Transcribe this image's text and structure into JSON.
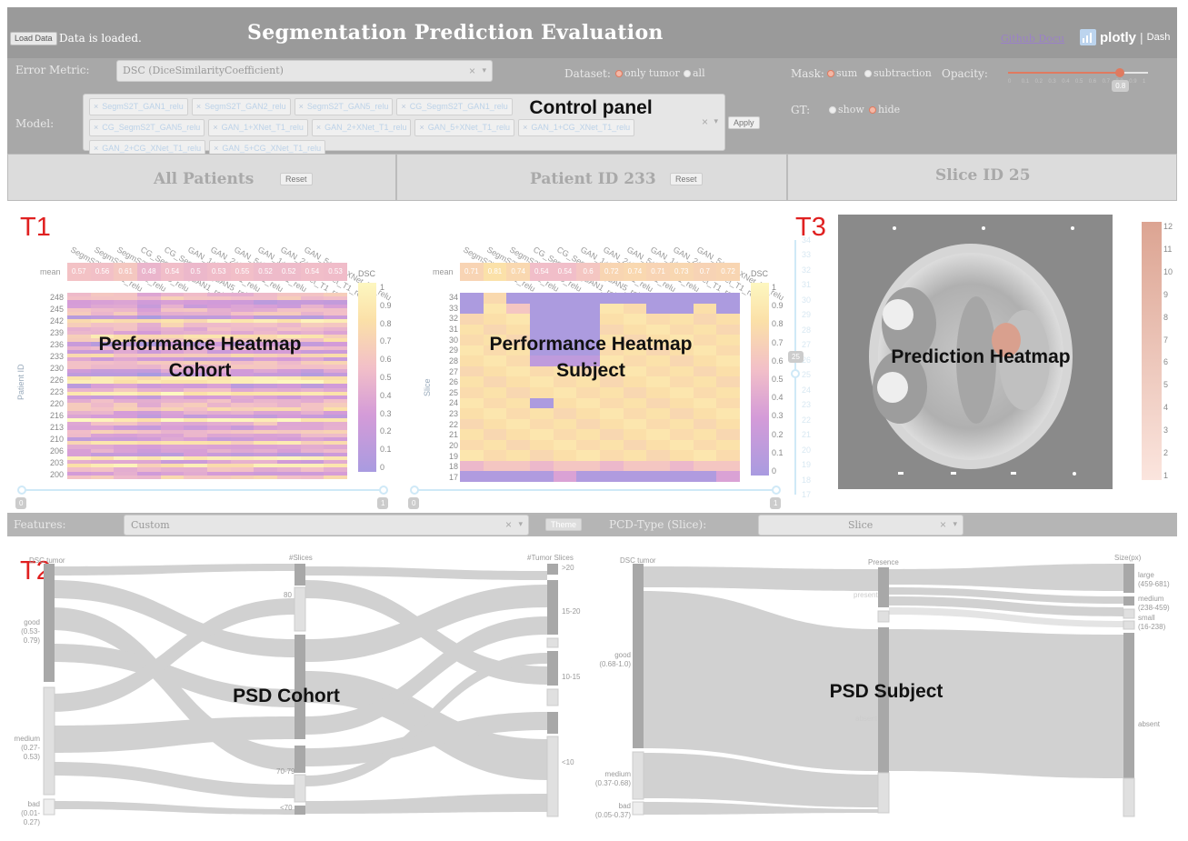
{
  "header": {
    "load_button": "Load Data",
    "load_status": "Data is loaded.",
    "title": "Segmentation Prediction Evaluation",
    "github_docu": "Github Docu",
    "plotly_word": "plotly",
    "plotly_sep": "|",
    "plotly_dash": "Dash"
  },
  "controls": {
    "error_metric_label": "Error Metric:",
    "error_metric_value": "DSC (DiceSimilarityCoefficient)",
    "dataset_label": "Dataset:",
    "dataset_options": [
      "only tumor",
      "all"
    ],
    "model_label": "Model:",
    "models": [
      "SegmS2T_GAN1_relu",
      "SegmS2T_GAN2_relu",
      "SegmS2T_GAN5_relu",
      "CG_SegmS2T_GAN1_relu",
      "CG_SegmS2T_GAN5_relu",
      "GAN_1+XNet_T1_relu",
      "GAN_2+XNet_T1_relu",
      "GAN_5+XNet_T1_relu",
      "GAN_1+CG_XNet_T1_relu",
      "GAN_2+CG_XNet_T1_relu",
      "GAN_5+CG_XNet_T1_relu"
    ],
    "apply_button": "Apply",
    "clear_glyph": "×",
    "caret_glyph": "▾",
    "overlay": "Control panel",
    "mask_label": "Mask:",
    "mask_options": [
      "sum",
      "subtraction"
    ],
    "opacity_label": "Opacity:",
    "opacity_ticks": [
      "0",
      "0.1",
      "0.2",
      "0.3",
      "0.4",
      "0.5",
      "0.6",
      "0.7",
      "0.8",
      "0.9",
      "1"
    ],
    "opacity_value": "0.8",
    "opacity_fraction": 0.8,
    "gt_label": "GT:",
    "gt_options": [
      "show",
      "hide"
    ]
  },
  "sections": {
    "all_patients": "All Patients",
    "patient": "Patient ID 233",
    "slice": "Slice ID 25",
    "reset": "Reset"
  },
  "tags": {
    "t1": "T1",
    "t2": "T2",
    "t3": "T3"
  },
  "cohort_heatmap": {
    "overlay_line1": "Performance Heatmap",
    "overlay_line2": "Cohort",
    "mean_label": "mean",
    "means": [
      "0.57",
      "0.56",
      "0.61",
      "0.48",
      "0.54",
      "0.5",
      "0.53",
      "0.55",
      "0.52",
      "0.52",
      "0.54",
      "0.53"
    ],
    "columns": [
      "SegmS2T_GAN1_relu",
      "SegmS2T_GAN2_relu",
      "SegmS2T_GAN5_relu",
      "CG_SegmS2T_GAN1_relu",
      "CG_SegmS2T_GAN5_relu",
      "GAN_1+XNet_T1_relu",
      "GAN_2+XNet_T1_relu",
      "GAN_5+XNet_T1_relu",
      "GAN_1+CG_XNet_T1_relu",
      "GAN_2+CG_XNet_T1_relu",
      "GAN_5+CG_XNet_T1_relu",
      ""
    ],
    "yaxis_label": "Patient ID",
    "y_ticks": [
      "248",
      "245",
      "242",
      "239",
      "236",
      "233",
      "230",
      "226",
      "223",
      "220",
      "216",
      "213",
      "210",
      "206",
      "203",
      "200"
    ],
    "colorbar_title": "DSC",
    "colorbar_ticks": [
      "1",
      "0.9",
      "0.8",
      "0.7",
      "0.6",
      "0.5",
      "0.4",
      "0.3",
      "0.2",
      "0.1",
      "0"
    ],
    "slider_min": "0",
    "slider_max": "1"
  },
  "subject_heatmap": {
    "overlay_line1": "Performance Heatmap",
    "overlay_line2": "Subject",
    "mean_label": "mean",
    "means": [
      "0.71",
      "0.81",
      "0.74",
      "0.54",
      "0.54",
      "0.6",
      "0.72",
      "0.74",
      "0.71",
      "0.73",
      "0.7",
      "0.72"
    ],
    "yaxis_label": "Slice",
    "y_ticks": [
      "34",
      "33",
      "32",
      "31",
      "30",
      "29",
      "28",
      "27",
      "26",
      "25",
      "24",
      "23",
      "22",
      "21",
      "20",
      "19",
      "18",
      "17"
    ],
    "colorbar_title": "DSC",
    "colorbar_ticks": [
      "1",
      "0.9",
      "0.8",
      "0.7",
      "0.6",
      "0.5",
      "0.4",
      "0.3",
      "0.2",
      "0.1",
      "0"
    ],
    "slider_min": "0",
    "slider_max": "1",
    "slice_slider_ticks": [
      "34",
      "33",
      "32",
      "31",
      "30",
      "29",
      "28",
      "27",
      "26",
      "25",
      "24",
      "23",
      "22",
      "21",
      "20",
      "19",
      "18",
      "17"
    ],
    "slice_value": "25"
  },
  "prediction": {
    "overlay": "Prediction Heatmap",
    "colorbar_ticks": [
      "12",
      "11",
      "10",
      "9",
      "8",
      "7",
      "6",
      "5",
      "4",
      "3",
      "2",
      "1"
    ]
  },
  "features": {
    "label": "Features:",
    "value": "Custom",
    "theme_button": "Theme",
    "pcd_label": "PCD-Type (Slice):",
    "pcd_value": "Slice"
  },
  "psd_cohort": {
    "overlay": "PSD Cohort",
    "dims": [
      "DSC tumor",
      "#Slices",
      "#Tumor Slices"
    ],
    "dsc_levels": [
      {
        "name": "good",
        "range": "(0.53-0.79)"
      },
      {
        "name": "medium",
        "range": "(0.27-0.53)"
      },
      {
        "name": "bad",
        "range": "(0.01-0.27)"
      }
    ],
    "slices_levels": [
      "80",
      "<70",
      "70-79"
    ],
    "tumor_levels": [
      ">20",
      "15-20",
      "10-15",
      "<10"
    ]
  },
  "psd_subject": {
    "overlay": "PSD Subject",
    "dims": [
      "DSC tumor",
      "Presence",
      "Size(px)"
    ],
    "dsc_levels": [
      {
        "name": "good",
        "range": "(0.68-1.0)"
      },
      {
        "name": "medium",
        "range": "(0.37-0.68)"
      },
      {
        "name": "bad",
        "range": "(0.05-0.37)"
      }
    ],
    "presence_levels": [
      "present",
      "absent"
    ],
    "size_levels": [
      {
        "name": "large",
        "range": "(459-681)"
      },
      {
        "name": "medium",
        "range": "(238-459)"
      },
      {
        "name": "small",
        "range": "(16-238)"
      },
      {
        "name": "absent",
        "range": ""
      }
    ]
  }
}
